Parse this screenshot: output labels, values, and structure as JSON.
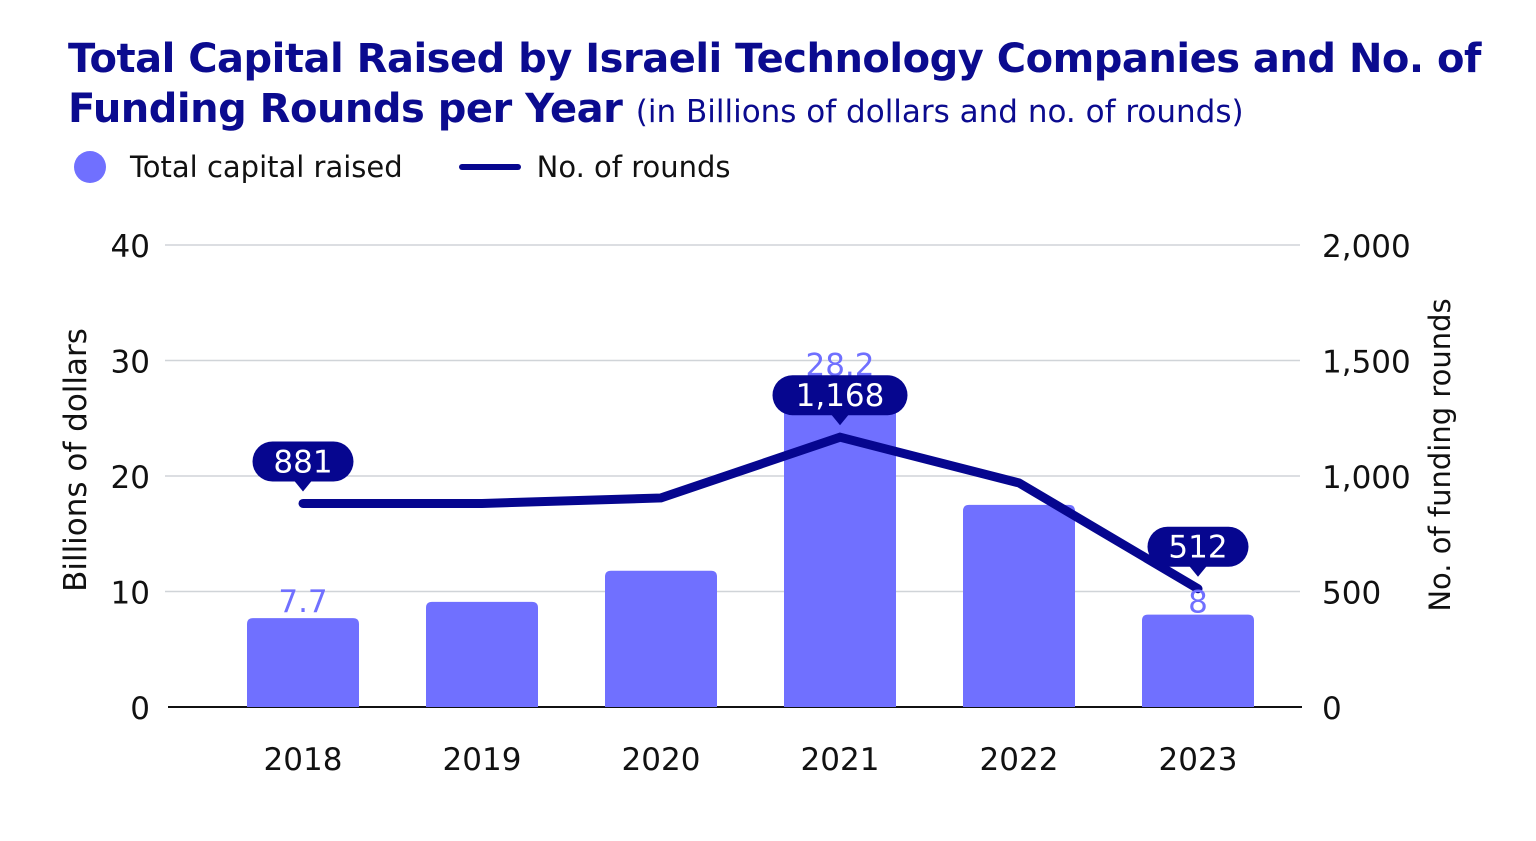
{
  "colors": {
    "title": "#0b0b8f",
    "bar": "#7070ff",
    "line": "#06068f",
    "bar_label": "#7070ff",
    "grid": "#d0d4d8"
  },
  "chart_data": {
    "type": "bar+line",
    "title": "Total Capital Raised by Israeli Technology Companies and No. of Funding Rounds per Year",
    "subtitle": "(in Billions of dollars and no. of rounds)",
    "categories": [
      "2018",
      "2019",
      "2020",
      "2021",
      "2022",
      "2023"
    ],
    "series": [
      {
        "name": "Total capital raised",
        "type": "bar",
        "axis": "left",
        "values": [
          7.7,
          9.1,
          11.8,
          28.2,
          17.5,
          8
        ],
        "labels": [
          "7.7",
          "",
          "",
          "28.2",
          "",
          "8"
        ]
      },
      {
        "name": "No. of rounds",
        "type": "line",
        "axis": "right",
        "values": [
          881,
          881,
          905,
          1168,
          970,
          512
        ],
        "labels": [
          "881",
          "",
          "",
          "1,168",
          "",
          "512"
        ]
      }
    ],
    "ylabel": "Billions of dollars",
    "y2label": "No. of funding rounds",
    "ylim": [
      0,
      40
    ],
    "y2lim": [
      0,
      2000
    ],
    "yticks": [
      "0",
      "10",
      "20",
      "30",
      "40"
    ],
    "y2ticks": [
      "0",
      "500",
      "1,000",
      "1,500",
      "2,000"
    ],
    "grid": true,
    "legend": "top-left"
  }
}
